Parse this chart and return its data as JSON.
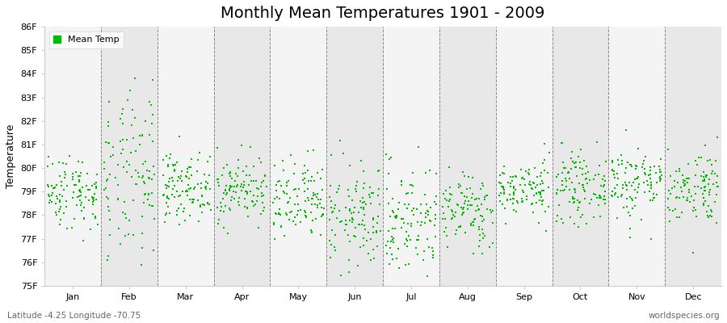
{
  "title": "Monthly Mean Temperatures 1901 - 2009",
  "ylabel": "Temperature",
  "xlabel": "",
  "ylim": [
    75,
    86
  ],
  "ytick_labels": [
    "75F",
    "76F",
    "77F",
    "78F",
    "79F",
    "80F",
    "81F",
    "82F",
    "83F",
    "84F",
    "85F",
    "86F"
  ],
  "ytick_values": [
    75,
    76,
    77,
    78,
    79,
    80,
    81,
    82,
    83,
    84,
    85,
    86
  ],
  "months": [
    "Jan",
    "Feb",
    "Mar",
    "Apr",
    "May",
    "Jun",
    "Jul",
    "Aug",
    "Sep",
    "Oct",
    "Nov",
    "Dec"
  ],
  "month_centers": [
    0.5,
    1.5,
    2.5,
    3.5,
    4.5,
    5.5,
    6.5,
    7.5,
    8.5,
    9.5,
    10.5,
    11.5
  ],
  "xlim": [
    0,
    12
  ],
  "marker_color": "#00bb00",
  "background_color": "#ffffff",
  "band_color_odd": "#e8e8e8",
  "band_color_even": "#f4f4f4",
  "grid_line_color": "#888888",
  "title_fontsize": 14,
  "axis_fontsize": 9,
  "tick_fontsize": 8,
  "legend_label": "Mean Temp",
  "bottom_left_text": "Latitude -4.25 Longitude -70.75",
  "bottom_right_text": "worldspecies.org",
  "num_years": 109,
  "seed": 42,
  "monthly_means": [
    79.0,
    79.5,
    79.2,
    79.1,
    78.5,
    77.9,
    77.8,
    78.2,
    79.1,
    79.2,
    79.4,
    79.2
  ],
  "monthly_stds": [
    0.8,
    1.8,
    0.7,
    0.7,
    0.9,
    1.1,
    1.2,
    0.8,
    0.6,
    0.7,
    0.8,
    0.8
  ]
}
